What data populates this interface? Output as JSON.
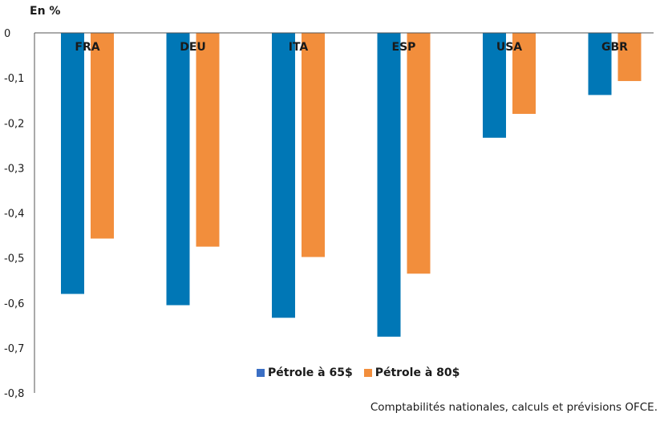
{
  "chart_data": {
    "type": "bar",
    "unit_label": "En %",
    "categories": [
      "FRA",
      "DEU",
      "ITA",
      "ESP",
      "USA",
      "GBR"
    ],
    "series": [
      {
        "name": "Pétrole à 65$",
        "color": "#0077b6",
        "values": [
          -0.58,
          -0.605,
          -0.633,
          -0.675,
          -0.233,
          -0.138
        ]
      },
      {
        "name": "Pétrole à 80$",
        "color": "#f28e3c",
        "values": [
          -0.457,
          -0.475,
          -0.498,
          -0.535,
          -0.18,
          -0.107
        ]
      }
    ],
    "ylim": [
      -0.8,
      0
    ],
    "yticks": [
      "0",
      "-0,1",
      "-0,2",
      "-0,3",
      "-0,4",
      "-0,5",
      "-0,6",
      "-0,7",
      "-0,8"
    ],
    "legend_position": "bottom-center",
    "grid": false,
    "source": "Comptabilités nationales, calculs et prévisions OFCE."
  }
}
